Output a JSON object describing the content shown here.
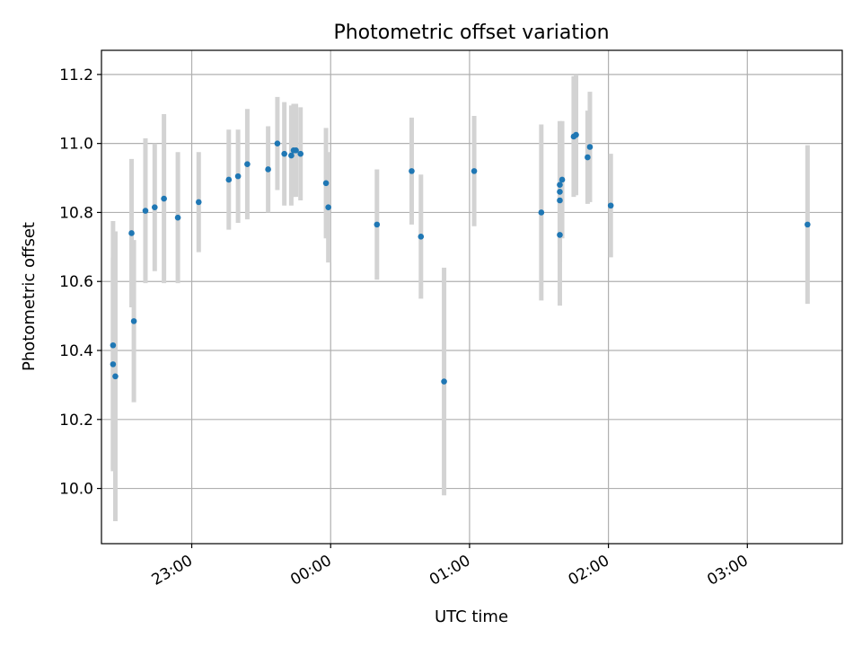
{
  "chart_data": {
    "type": "scatter",
    "title": "Photometric offset variation",
    "xlabel": "UTC time",
    "ylabel": "Photometric offset",
    "x_axis_type": "time",
    "xlim": [
      "22:21",
      "03:41"
    ],
    "ylim": [
      9.84,
      11.27
    ],
    "grid": true,
    "x_ticks": [
      {
        "value": "23:00",
        "label": "23:00"
      },
      {
        "value": "00:00",
        "label": "00:00"
      },
      {
        "value": "01:00",
        "label": "01:00"
      },
      {
        "value": "02:00",
        "label": "02:00"
      },
      {
        "value": "03:00",
        "label": "03:00"
      }
    ],
    "y_ticks": [
      10.0,
      10.2,
      10.4,
      10.6,
      10.8,
      11.0,
      11.2
    ],
    "y_tick_labels": [
      "10.0",
      "10.2",
      "10.4",
      "10.6",
      "10.8",
      "11.0",
      "11.2"
    ],
    "colors": {
      "point": "#1f77b4",
      "errorbar": "#d3d3d3"
    },
    "series": [
      {
        "points": [
          {
            "x": "22:26",
            "y": 10.415,
            "err": 0.36
          },
          {
            "x": "22:26",
            "y": 10.36,
            "err": 0.31
          },
          {
            "x": "22:27",
            "y": 10.325,
            "err": 0.42
          },
          {
            "x": "22:34",
            "y": 10.74,
            "err": 0.215
          },
          {
            "x": "22:35",
            "y": 10.485,
            "err": 0.235
          },
          {
            "x": "22:40",
            "y": 10.805,
            "err": 0.21
          },
          {
            "x": "22:44",
            "y": 10.815,
            "err": 0.185
          },
          {
            "x": "22:48",
            "y": 10.84,
            "err": 0.245
          },
          {
            "x": "22:54",
            "y": 10.785,
            "err": 0.19
          },
          {
            "x": "23:03",
            "y": 10.83,
            "err": 0.145
          },
          {
            "x": "23:16",
            "y": 10.895,
            "err": 0.145
          },
          {
            "x": "23:20",
            "y": 10.905,
            "err": 0.135
          },
          {
            "x": "23:24",
            "y": 10.94,
            "err": 0.16
          },
          {
            "x": "23:33",
            "y": 10.925,
            "err": 0.125
          },
          {
            "x": "23:37",
            "y": 11.0,
            "err": 0.135
          },
          {
            "x": "23:40",
            "y": 10.97,
            "err": 0.15
          },
          {
            "x": "23:43",
            "y": 10.965,
            "err": 0.145
          },
          {
            "x": "23:44",
            "y": 10.98,
            "err": 0.135
          },
          {
            "x": "23:45",
            "y": 10.98,
            "err": 0.135
          },
          {
            "x": "23:47",
            "y": 10.97,
            "err": 0.135
          },
          {
            "x": "23:58",
            "y": 10.885,
            "err": 0.16
          },
          {
            "x": "23:59",
            "y": 10.815,
            "err": 0.16
          },
          {
            "x": "00:20",
            "y": 10.765,
            "err": 0.16
          },
          {
            "x": "00:35",
            "y": 10.92,
            "err": 0.155
          },
          {
            "x": "00:39",
            "y": 10.73,
            "err": 0.18
          },
          {
            "x": "00:49",
            "y": 10.31,
            "err": 0.33
          },
          {
            "x": "01:02",
            "y": 10.92,
            "err": 0.16
          },
          {
            "x": "01:31",
            "y": 10.8,
            "err": 0.255
          },
          {
            "x": "01:39",
            "y": 10.735,
            "err": 0.205
          },
          {
            "x": "01:39",
            "y": 10.835,
            "err": 0.11
          },
          {
            "x": "01:39",
            "y": 10.86,
            "err": 0.205
          },
          {
            "x": "01:39",
            "y": 10.88,
            "err": 0.17
          },
          {
            "x": "01:40",
            "y": 10.895,
            "err": 0.17
          },
          {
            "x": "01:45",
            "y": 11.02,
            "err": 0.175
          },
          {
            "x": "01:46",
            "y": 11.025,
            "err": 0.175
          },
          {
            "x": "01:51",
            "y": 10.96,
            "err": 0.135
          },
          {
            "x": "01:52",
            "y": 10.99,
            "err": 0.16
          },
          {
            "x": "02:01",
            "y": 10.82,
            "err": 0.15
          },
          {
            "x": "03:26",
            "y": 10.765,
            "err": 0.23
          }
        ]
      }
    ]
  }
}
